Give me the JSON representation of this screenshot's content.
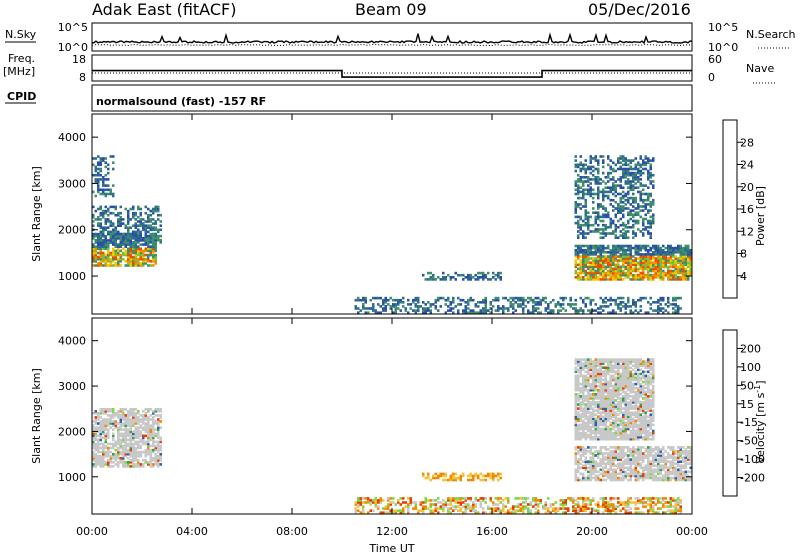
{
  "header": {
    "station": "Adak East (fitACF)",
    "beam": "Beam 09",
    "date": "05/Dec/2016"
  },
  "strip_panels": {
    "nsky_label": "N.Sky",
    "nsearch_label": "N.Search",
    "nsky_ticks": [
      "10^5",
      "10^0"
    ],
    "nsearch_ticks": [
      "10^5",
      "10^0"
    ],
    "freq_label_1": "Freq.",
    "freq_label_2": "[MHz]",
    "freq_ticks": [
      "18",
      "8"
    ],
    "nave_label": "Nave",
    "nave_ticks": [
      "60",
      "0"
    ],
    "cpid_label": "CPID",
    "cpid_text": "normalsound (fast) -157 RF"
  },
  "colors": {
    "power_scale": [
      "#1414d2",
      "#2a4fa8",
      "#2f6e8a",
      "#3f8f6a",
      "#7bbf3a",
      "#f0c800",
      "#f09000",
      "#e85000",
      "#e00000"
    ],
    "velocity_scale": [
      "#e00000",
      "#e84000",
      "#f08a00",
      "#f5c23a",
      "#c8c8c8",
      "#7cd64a",
      "#2fa24a",
      "#2f5fa8",
      "#1a2ab5"
    ],
    "ground_gray": "#c8c8c8"
  },
  "chart_data": [
    {
      "type": "line",
      "panel": "N.Sky / N.Search",
      "ylabel_left": "N.Sky",
      "ylabel_right": "N.Search",
      "ylim_labels": [
        "10^0",
        "10^5"
      ],
      "x": [
        "00:00",
        "24:00"
      ],
      "note_series": "N.Sky solid line near bottom; N.Search dotted"
    },
    {
      "type": "line",
      "panel": "Frequency / Nave",
      "series": [
        {
          "name": "Freq. [MHz]",
          "x": [
            0,
            10,
            10,
            18,
            18,
            24
          ],
          "values": [
            12,
            12,
            9.5,
            9.5,
            12,
            12
          ]
        },
        {
          "name": "Nave",
          "x": [
            0,
            24
          ],
          "values": [
            8,
            8
          ]
        }
      ],
      "ylim": [
        8,
        18
      ],
      "y2lim": [
        0,
        60
      ]
    },
    {
      "type": "heatmap",
      "panel": "Power",
      "xlabel": "",
      "ylabel": "Slant Range [km]",
      "xlim": [
        0,
        24
      ],
      "xticks": [
        "00:00",
        "04:00",
        "08:00",
        "12:00",
        "16:00",
        "20:00",
        "00:00"
      ],
      "ylim": [
        180,
        4500
      ],
      "yticks": [
        1000,
        2000,
        3000,
        4000
      ],
      "colorbar_label": "Power [dB]",
      "colorbar_ticks": [
        4,
        8,
        12,
        16,
        20,
        24,
        28
      ],
      "regions": [
        {
          "t": [
            0.0,
            2.6
          ],
          "range": [
            1200,
            1900
          ],
          "level": 0.55
        },
        {
          "t": [
            0.0,
            2.8
          ],
          "range": [
            1700,
            2500
          ],
          "level": 0.2
        },
        {
          "t": [
            0.0,
            0.8
          ],
          "range": [
            2700,
            3600
          ],
          "level": 0.15
        },
        {
          "t": [
            13.2,
            16.3
          ],
          "range": [
            900,
            1050
          ],
          "level": 0.2
        },
        {
          "t": [
            10.5,
            23.6
          ],
          "range": [
            180,
            500
          ],
          "level": 0.2
        },
        {
          "t": [
            19.3,
            24.0
          ],
          "range": [
            900,
            1650
          ],
          "level": 0.6
        },
        {
          "t": [
            19.3,
            22.5
          ],
          "range": [
            1800,
            3600
          ],
          "level": 0.25
        }
      ]
    },
    {
      "type": "heatmap",
      "panel": "Velocity",
      "xlabel": "Time UT",
      "ylabel": "Slant Range [km]",
      "xlim": [
        0,
        24
      ],
      "xticks": [
        "00:00",
        "04:00",
        "08:00",
        "12:00",
        "16:00",
        "20:00",
        "00:00"
      ],
      "ylim": [
        180,
        4500
      ],
      "yticks": [
        1000,
        2000,
        3000,
        4000
      ],
      "colorbar_label": "Velocity [m s^-1]",
      "colorbar_ticks": [
        200,
        100,
        50,
        15,
        -15,
        -50,
        -100,
        -200
      ],
      "regions": [
        {
          "t": [
            0.0,
            2.8
          ],
          "range": [
            1200,
            2500
          ],
          "level": 0.5
        },
        {
          "t": [
            13.2,
            16.3
          ],
          "range": [
            900,
            1050
          ],
          "level": 0.25
        },
        {
          "t": [
            10.5,
            23.6
          ],
          "range": [
            180,
            500
          ],
          "level": 0.3
        },
        {
          "t": [
            19.3,
            24.0
          ],
          "range": [
            900,
            1650
          ],
          "level": 0.5
        },
        {
          "t": [
            19.3,
            22.5
          ],
          "range": [
            1800,
            3600
          ],
          "level": 0.6
        }
      ]
    }
  ],
  "axes_labels": {
    "slant_range": "Slant Range [km]",
    "time": "Time UT",
    "power_cbar": "Power [dB]",
    "velocity_cbar": "Velocity [m s",
    "velocity_cbar_sup": "-1",
    "velocity_cbar_end": "]"
  }
}
